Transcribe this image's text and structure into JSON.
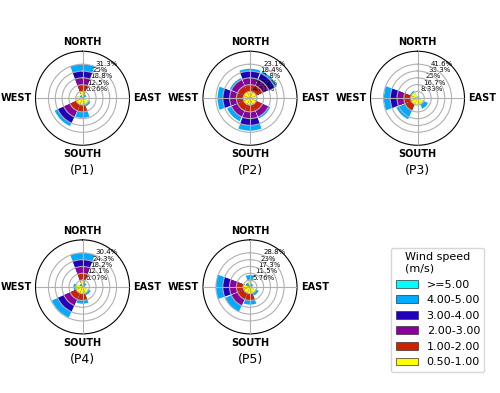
{
  "chart_data": [
    {
      "type": "windrose",
      "title": "(P1)",
      "x": [
        0,
        45,
        90,
        135,
        180,
        225,
        270,
        315
      ],
      "xlim": [
        0,
        360
      ],
      "xticks": [
        {
          "value": 0,
          "label": "NORTH"
        },
        {
          "value": 90,
          "label": "EAST"
        },
        {
          "value": 180,
          "label": "SOUTH"
        },
        {
          "value": 270,
          "label": "WEST"
        }
      ],
      "ylim": [
        0,
        0.43194
      ],
      "yticks": [
        {
          "value": 0.0626,
          "label": "6.26%"
        },
        {
          "value": 0.125,
          "label": "12.5%"
        },
        {
          "value": 0.188,
          "label": "18.8%"
        },
        {
          "value": 0.25,
          "label": "25%"
        },
        {
          "value": 0.313,
          "label": "31.3%"
        }
      ],
      "grid": true,
      "stacked": false,
      "series": [
        {
          "name": ">=5.00",
          "color": "#00FFFF",
          "values": [
            0,
            0,
            0,
            0,
            0,
            0,
            0,
            0
          ]
        },
        {
          "name": "4.00-5.00",
          "color": "#00AAFF",
          "values": [
            0.313,
            0.04,
            0.02,
            0.08,
            0.18,
            0.28,
            0.05,
            0.03
          ]
        },
        {
          "name": "3.00-4.00",
          "color": "#2200BB",
          "values": [
            0.25,
            0.0,
            0.0,
            0.0,
            0.0,
            0.25,
            0.0,
            0.0
          ]
        },
        {
          "name": "2.00-3.00",
          "color": "#880099",
          "values": [
            0.188,
            0.0,
            0.0,
            0.0,
            0.0,
            0.188,
            0.0,
            0.0
          ]
        },
        {
          "name": "1.00-2.00",
          "color": "#CC2200",
          "values": [
            0.125,
            0.0,
            0.0,
            0.0,
            0.125,
            0.125,
            0.0,
            0.0
          ]
        },
        {
          "name": "0.50-1.00",
          "color": "#FFFF00",
          "values": [
            0.063,
            0.0,
            0.0,
            0.063,
            0.063,
            0.063,
            0.063,
            0.0
          ]
        }
      ]
    },
    {
      "type": "windrose",
      "title": "(P2)",
      "x": [
        0,
        45,
        90,
        135,
        180,
        225,
        270,
        315
      ],
      "xlim": [
        0,
        360
      ],
      "xticks": [
        {
          "value": 0,
          "label": "NORTH"
        },
        {
          "value": 90,
          "label": "EAST"
        },
        {
          "value": 180,
          "label": "SOUTH"
        },
        {
          "value": 270,
          "label": "WEST"
        }
      ],
      "ylim": [
        0,
        0.31878
      ],
      "yticks": [
        {
          "value": 0.0461,
          "label": "4.61%"
        },
        {
          "value": 0.0922,
          "label": "9.22%"
        },
        {
          "value": 0.138,
          "label": "13.8%"
        },
        {
          "value": 0.184,
          "label": "18.4%"
        },
        {
          "value": 0.231,
          "label": "23.1%"
        }
      ],
      "grid": true,
      "stacked": false,
      "series": [
        {
          "name": ">=5.00",
          "color": "#00FFFF",
          "values": [
            0,
            0,
            0,
            0,
            0,
            0,
            0,
            0
          ]
        },
        {
          "name": "4.00-5.00",
          "color": "#00AAFF",
          "values": [
            0.2,
            0.2,
            0.05,
            0.15,
            0.22,
            0.17,
            0.22,
            0.15
          ]
        },
        {
          "name": "3.00-4.00",
          "color": "#2200BB",
          "values": [
            0.184,
            0.184,
            0.0,
            0.0,
            0.184,
            0.0,
            0.184,
            0.0
          ]
        },
        {
          "name": "2.00-3.00",
          "color": "#880099",
          "values": [
            0.138,
            0.138,
            0.0,
            0.138,
            0.138,
            0.138,
            0.138,
            0.138
          ]
        },
        {
          "name": "1.00-2.00",
          "color": "#CC2200",
          "values": [
            0.092,
            0.092,
            0.0,
            0.092,
            0.092,
            0.092,
            0.092,
            0.092
          ]
        },
        {
          "name": "0.50-1.00",
          "color": "#FFFF00",
          "values": [
            0.046,
            0.046,
            0.046,
            0.046,
            0.046,
            0.046,
            0.046,
            0.046
          ]
        }
      ]
    },
    {
      "type": "windrose",
      "title": "(P3)",
      "x": [
        0,
        45,
        90,
        135,
        180,
        225,
        270,
        315
      ],
      "xlim": [
        0,
        360
      ],
      "xticks": [
        {
          "value": 0,
          "label": "NORTH"
        },
        {
          "value": 90,
          "label": "EAST"
        },
        {
          "value": 180,
          "label": "SOUTH"
        },
        {
          "value": 270,
          "label": "WEST"
        }
      ],
      "ylim": [
        0,
        0.57408
      ],
      "yticks": [
        {
          "value": 0.0833,
          "label": "8.33%"
        },
        {
          "value": 0.167,
          "label": "16.7%"
        },
        {
          "value": 0.25,
          "label": "25%"
        },
        {
          "value": 0.333,
          "label": "33.3%"
        },
        {
          "value": 0.416,
          "label": "41.6%"
        }
      ],
      "grid": true,
      "stacked": false,
      "series": [
        {
          "name": ">=5.00",
          "color": "#00FFFF",
          "values": [
            0,
            0,
            0,
            0,
            0,
            0,
            0,
            0
          ]
        },
        {
          "name": "4.00-5.00",
          "color": "#00AAFF",
          "values": [
            0.02,
            0.03,
            0.01,
            0.14,
            0.08,
            0.28,
            0.41,
            0.1
          ]
        },
        {
          "name": "3.00-4.00",
          "color": "#2200BB",
          "values": [
            0.0,
            0.0,
            0.0,
            0.0,
            0.0,
            0.0,
            0.333,
            0.0
          ]
        },
        {
          "name": "2.00-3.00",
          "color": "#880099",
          "values": [
            0.0,
            0.0,
            0.0,
            0.0,
            0.0,
            0.0,
            0.25,
            0.0
          ]
        },
        {
          "name": "1.00-2.00",
          "color": "#CC2200",
          "values": [
            0.0,
            0.0,
            0.0,
            0.0,
            0.0,
            0.167,
            0.167,
            0.0
          ]
        },
        {
          "name": "0.50-1.00",
          "color": "#FFFF00",
          "values": [
            0.0,
            0.0,
            0.0,
            0.083,
            0.083,
            0.083,
            0.083,
            0.083
          ]
        }
      ]
    },
    {
      "type": "windrose",
      "title": "(P4)",
      "x": [
        0,
        45,
        90,
        135,
        180,
        225,
        270,
        315
      ],
      "xlim": [
        0,
        360
      ],
      "xticks": [
        {
          "value": 0,
          "label": "NORTH"
        },
        {
          "value": 90,
          "label": "EAST"
        },
        {
          "value": 180,
          "label": "SOUTH"
        },
        {
          "value": 270,
          "label": "WEST"
        }
      ],
      "ylim": [
        0,
        0.41952
      ],
      "yticks": [
        {
          "value": 0.0607,
          "label": "6.07%"
        },
        {
          "value": 0.121,
          "label": "12.1%"
        },
        {
          "value": 0.182,
          "label": "18.2%"
        },
        {
          "value": 0.243,
          "label": "24.3%"
        },
        {
          "value": 0.304,
          "label": "30.4%"
        }
      ],
      "grid": true,
      "stacked": false,
      "series": [
        {
          "name": ">=5.00",
          "color": "#00FFFF",
          "values": [
            0,
            0,
            0,
            0,
            0,
            0,
            0,
            0
          ]
        },
        {
          "name": "4.00-5.00",
          "color": "#00AAFF",
          "values": [
            0.304,
            0.04,
            0.02,
            0.08,
            0.15,
            0.3,
            0.08,
            0.03
          ]
        },
        {
          "name": "3.00-4.00",
          "color": "#2200BB",
          "values": [
            0.243,
            0.0,
            0.0,
            0.0,
            0.0,
            0.243,
            0.0,
            0.0
          ]
        },
        {
          "name": "2.00-3.00",
          "color": "#880099",
          "values": [
            0.182,
            0.0,
            0.0,
            0.0,
            0.0,
            0.182,
            0.0,
            0.0
          ]
        },
        {
          "name": "1.00-2.00",
          "color": "#CC2200",
          "values": [
            0.121,
            0.0,
            0.0,
            0.0,
            0.121,
            0.121,
            0.0,
            0.0
          ]
        },
        {
          "name": "0.50-1.00",
          "color": "#FFFF00",
          "values": [
            0.061,
            0.0,
            0.0,
            0.061,
            0.061,
            0.061,
            0.061,
            0.0
          ]
        }
      ]
    },
    {
      "type": "windrose",
      "title": "(P5)",
      "x": [
        0,
        45,
        90,
        135,
        180,
        225,
        270,
        315
      ],
      "xlim": [
        0,
        360
      ],
      "xticks": [
        {
          "value": 0,
          "label": "NORTH"
        },
        {
          "value": 90,
          "label": "EAST"
        },
        {
          "value": 180,
          "label": "SOUTH"
        },
        {
          "value": 270,
          "label": "WEST"
        }
      ],
      "ylim": [
        0,
        0.39744
      ],
      "yticks": [
        {
          "value": 0.0576,
          "label": "5.76%"
        },
        {
          "value": 0.115,
          "label": "11.5%"
        },
        {
          "value": 0.173,
          "label": "17.3%"
        },
        {
          "value": 0.23,
          "label": "23%"
        },
        {
          "value": 0.288,
          "label": "28.8%"
        }
      ],
      "grid": true,
      "stacked": false,
      "series": [
        {
          "name": ">=5.00",
          "color": "#00FFFF",
          "values": [
            0,
            0,
            0,
            0,
            0,
            0,
            0,
            0
          ]
        },
        {
          "name": "4.00-5.00",
          "color": "#00AAFF",
          "values": [
            0.1,
            0.03,
            0.02,
            0.08,
            0.15,
            0.23,
            0.288,
            0.04
          ]
        },
        {
          "name": "3.00-4.00",
          "color": "#2200BB",
          "values": [
            0.0,
            0.0,
            0.0,
            0.0,
            0.0,
            0.0,
            0.23,
            0.0
          ]
        },
        {
          "name": "2.00-3.00",
          "color": "#880099",
          "values": [
            0.0,
            0.0,
            0.0,
            0.0,
            0.0,
            0.173,
            0.173,
            0.0
          ]
        },
        {
          "name": "1.00-2.00",
          "color": "#CC2200",
          "values": [
            0.0,
            0.0,
            0.0,
            0.0,
            0.115,
            0.115,
            0.115,
            0.0
          ]
        },
        {
          "name": "0.50-1.00",
          "color": "#FFFF00",
          "values": [
            0.058,
            0.0,
            0.0,
            0.058,
            0.058,
            0.058,
            0.058,
            0.0
          ]
        }
      ]
    }
  ],
  "legend": "lower right",
  "legend_title": "Wind speed\n(m/s)"
}
